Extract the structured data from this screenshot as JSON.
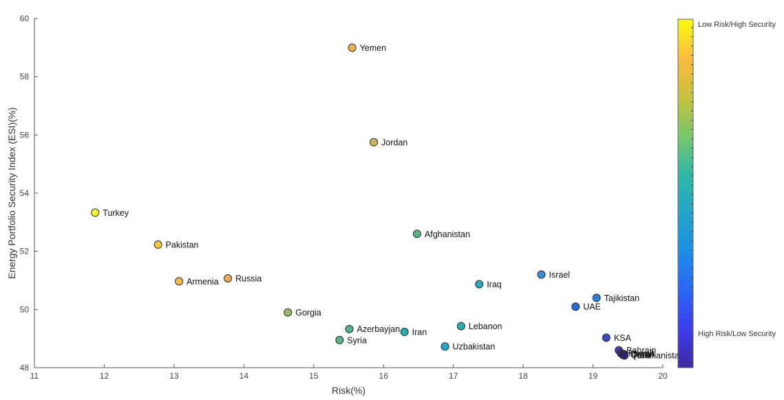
{
  "chart_data": {
    "type": "scatter",
    "xlabel": "Risk(%)",
    "ylabel": "Energy Portfolio Security Index (ESI)(%)",
    "xlim": [
      11,
      20
    ],
    "ylim": [
      48,
      60
    ],
    "xticks": [
      "11",
      "12",
      "13",
      "14",
      "15",
      "16",
      "17",
      "18",
      "19",
      "20"
    ],
    "yticks": [
      "48",
      "50",
      "52",
      "54",
      "56",
      "58",
      "60"
    ],
    "grid": false,
    "points": [
      {
        "label": "Yemen",
        "x": 15.55,
        "y": 59.0,
        "color": "#f0b04a"
      },
      {
        "label": "Jordan",
        "x": 15.86,
        "y": 55.75,
        "color": "#c7b85c"
      },
      {
        "label": "Turkey",
        "x": 11.87,
        "y": 53.33,
        "color": "#f9f821"
      },
      {
        "label": "Pakistan",
        "x": 12.77,
        "y": 52.23,
        "color": "#f3c83a"
      },
      {
        "label": "Afghanistan",
        "x": 16.48,
        "y": 52.6,
        "color": "#59b486"
      },
      {
        "label": "Armenia",
        "x": 13.07,
        "y": 50.97,
        "color": "#f2bd48"
      },
      {
        "label": "Russia",
        "x": 13.77,
        "y": 51.07,
        "color": "#eda957"
      },
      {
        "label": "Israel",
        "x": 18.26,
        "y": 51.2,
        "color": "#3b8fd5"
      },
      {
        "label": "Iraq",
        "x": 17.37,
        "y": 50.87,
        "color": "#28a8c0"
      },
      {
        "label": "Tajikistan",
        "x": 19.05,
        "y": 50.4,
        "color": "#2b7fda"
      },
      {
        "label": "UAE",
        "x": 18.75,
        "y": 50.1,
        "color": "#1f6fd8"
      },
      {
        "label": "Gorgia",
        "x": 14.63,
        "y": 49.9,
        "color": "#9aba66"
      },
      {
        "label": "Azerbayjan",
        "x": 15.51,
        "y": 49.33,
        "color": "#4fb28f"
      },
      {
        "label": "Lebanon",
        "x": 17.11,
        "y": 49.43,
        "color": "#27b1b2"
      },
      {
        "label": "Iran",
        "x": 16.3,
        "y": 49.23,
        "color": "#22b0b0"
      },
      {
        "label": "Syria",
        "x": 15.37,
        "y": 48.95,
        "color": "#5bb489"
      },
      {
        "label": "KSA",
        "x": 19.19,
        "y": 49.03,
        "color": "#3a46c5"
      },
      {
        "label": "Uzbakistan",
        "x": 16.88,
        "y": 48.73,
        "color": "#1eaac0"
      },
      {
        "label": "Bahrain",
        "x": 19.37,
        "y": 48.6,
        "color": "#3b41bb"
      },
      {
        "label": "Kuwait",
        "x": 19.4,
        "y": 48.5,
        "color": "#372f9a"
      },
      {
        "label": "Qatar",
        "x": 19.43,
        "y": 48.44,
        "color": "#34287c"
      },
      {
        "label": "Oman",
        "x": 19.44,
        "y": 48.47,
        "color": "#33277a"
      },
      {
        "label": "Turkmanistan",
        "x": 19.45,
        "y": 48.42,
        "color": "#302274"
      }
    ],
    "colorbar": {
      "top_label": "Low Risk/High Security",
      "bottom_label": "High Risk/Low Security",
      "colors": [
        "#f9fb0e",
        "#fbbd3c",
        "#c8c13c",
        "#7ac86a",
        "#2fb8a6",
        "#22a6c8",
        "#1b8ee8",
        "#2a66f5",
        "#3d3df0",
        "#3e2a9f"
      ]
    }
  }
}
